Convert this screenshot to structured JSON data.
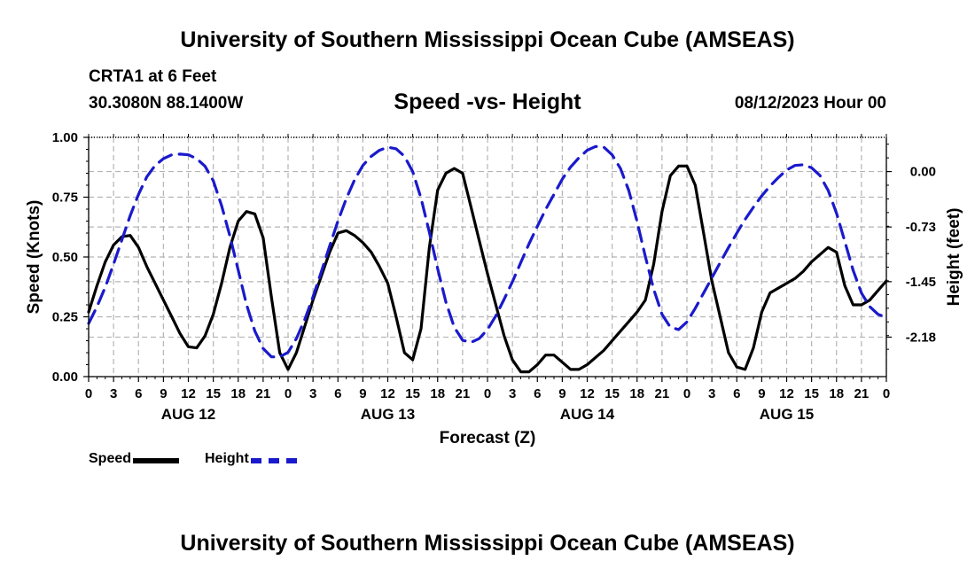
{
  "header": {
    "title": "University of Southern Mississippi Ocean Cube (AMSEAS)",
    "station": "CRTA1 at 6 Feet",
    "coords": "30.3080N  88.1400W",
    "datetime": "08/12/2023 Hour 00"
  },
  "footer": {
    "title": "University of Southern Mississippi Ocean Cube (AMSEAS)"
  },
  "legend": {
    "speed_label": "Speed",
    "height_label": "Height"
  },
  "colors": {
    "speed": "#000000",
    "height": "#1a1acc",
    "grid": "#b4b4b4"
  },
  "chart_data": {
    "type": "line",
    "title": "Speed -vs- Height",
    "xlabel": "Forecast (Z)",
    "ylabel": "Speed (Knots)",
    "y2label": "Height (feet)",
    "xlim": [
      0,
      96
    ],
    "ylim": [
      0,
      1.0
    ],
    "y2lim": [
      -2.7,
      0.45
    ],
    "x_ticks": [
      0,
      3,
      6,
      9,
      12,
      15,
      18,
      21,
      24,
      27,
      30,
      33,
      36,
      39,
      42,
      45,
      48,
      51,
      54,
      57,
      60,
      63,
      66,
      69,
      72,
      75,
      78,
      81,
      84,
      87,
      90,
      93,
      96
    ],
    "x_tick_labels": [
      "0",
      "3",
      "6",
      "9",
      "12",
      "15",
      "18",
      "21",
      "0",
      "3",
      "6",
      "9",
      "12",
      "15",
      "18",
      "21",
      "0",
      "3",
      "6",
      "9",
      "12",
      "15",
      "18",
      "21",
      "0",
      "3",
      "6",
      "9",
      "12",
      "15",
      "18",
      "21",
      "0"
    ],
    "day_labels": [
      {
        "x": 12,
        "label": "AUG 12"
      },
      {
        "x": 36,
        "label": "AUG 13"
      },
      {
        "x": 60,
        "label": "AUG 14"
      },
      {
        "x": 84,
        "label": "AUG 15"
      }
    ],
    "y_ticks": [
      0,
      0.25,
      0.5,
      0.75,
      1.0
    ],
    "y_tick_labels": [
      "0.00",
      "0.25",
      "0.50",
      "0.75",
      "1.00"
    ],
    "y2_ticks": [
      0.0,
      -0.73,
      -1.45,
      -2.18
    ],
    "y2_tick_labels": [
      "0.00",
      "-0.73",
      "-1.45",
      "-2.18"
    ],
    "series": [
      {
        "name": "Speed",
        "axis": "left",
        "style": "solid",
        "x": [
          0,
          1,
          2,
          3,
          4,
          5,
          6,
          7,
          8,
          9,
          10,
          11,
          12,
          13,
          14,
          15,
          16,
          17,
          18,
          19,
          20,
          21,
          22,
          23,
          24,
          25,
          26,
          27,
          28,
          29,
          30,
          31,
          32,
          33,
          34,
          35,
          36,
          37,
          38,
          39,
          40,
          41,
          42,
          43,
          44,
          45,
          46,
          47,
          48,
          49,
          50,
          51,
          52,
          53,
          54,
          55,
          56,
          57,
          58,
          59,
          60,
          61,
          62,
          63,
          64,
          65,
          66,
          67,
          68,
          69,
          70,
          71,
          72,
          73,
          74,
          75,
          76,
          77,
          78,
          79,
          80,
          81,
          82,
          83,
          84,
          85,
          86,
          87,
          88,
          89,
          90,
          91,
          92,
          93,
          94,
          95,
          96
        ],
        "values": [
          0.27,
          0.38,
          0.48,
          0.55,
          0.585,
          0.59,
          0.54,
          0.46,
          0.39,
          0.32,
          0.25,
          0.18,
          0.125,
          0.12,
          0.17,
          0.26,
          0.39,
          0.54,
          0.65,
          0.69,
          0.68,
          0.58,
          0.33,
          0.1,
          0.03,
          0.1,
          0.21,
          0.32,
          0.42,
          0.52,
          0.6,
          0.61,
          0.59,
          0.56,
          0.52,
          0.46,
          0.39,
          0.25,
          0.1,
          0.07,
          0.2,
          0.54,
          0.78,
          0.85,
          0.87,
          0.85,
          0.71,
          0.57,
          0.43,
          0.3,
          0.17,
          0.07,
          0.02,
          0.02,
          0.05,
          0.09,
          0.09,
          0.06,
          0.03,
          0.03,
          0.05,
          0.08,
          0.11,
          0.15,
          0.19,
          0.23,
          0.27,
          0.32,
          0.47,
          0.69,
          0.84,
          0.88,
          0.88,
          0.8,
          0.6,
          0.4,
          0.25,
          0.1,
          0.04,
          0.03,
          0.12,
          0.27,
          0.35,
          0.37,
          0.39,
          0.41,
          0.44,
          0.48,
          0.51,
          0.54,
          0.52,
          0.38,
          0.3,
          0.3,
          0.32,
          0.36,
          0.4
        ]
      },
      {
        "name": "Height",
        "axis": "right",
        "style": "dashed",
        "x": [
          0,
          1,
          2,
          3,
          4,
          5,
          6,
          7,
          8,
          9,
          10,
          11,
          12,
          13,
          14,
          15,
          16,
          17,
          18,
          19,
          20,
          21,
          22,
          23,
          24,
          25,
          26,
          27,
          28,
          29,
          30,
          31,
          32,
          33,
          34,
          35,
          36,
          37,
          38,
          39,
          40,
          41,
          42,
          43,
          44,
          45,
          46,
          47,
          48,
          49,
          50,
          51,
          52,
          53,
          54,
          55,
          56,
          57,
          58,
          59,
          60,
          61,
          62,
          63,
          64,
          65,
          66,
          67,
          68,
          69,
          70,
          71,
          72,
          73,
          74,
          75,
          76,
          77,
          78,
          79,
          80,
          81,
          82,
          83,
          84,
          85,
          86,
          87,
          88,
          89,
          90,
          91,
          92,
          93,
          94,
          95,
          96
        ],
        "values": [
          -2.0,
          -1.78,
          -1.52,
          -1.22,
          -0.9,
          -0.58,
          -0.3,
          -0.07,
          0.08,
          0.17,
          0.22,
          0.23,
          0.22,
          0.17,
          0.07,
          -0.12,
          -0.45,
          -0.85,
          -1.3,
          -1.75,
          -2.1,
          -2.33,
          -2.44,
          -2.44,
          -2.38,
          -2.2,
          -1.95,
          -1.65,
          -1.32,
          -0.98,
          -0.65,
          -0.36,
          -0.11,
          0.08,
          0.2,
          0.28,
          0.32,
          0.3,
          0.2,
          0.0,
          -0.35,
          -0.8,
          -1.28,
          -1.72,
          -2.05,
          -2.22,
          -2.25,
          -2.2,
          -2.08,
          -1.9,
          -1.68,
          -1.45,
          -1.2,
          -0.95,
          -0.72,
          -0.5,
          -0.3,
          -0.1,
          0.06,
          0.18,
          0.28,
          0.33,
          0.32,
          0.22,
          0.04,
          -0.25,
          -0.66,
          -1.12,
          -1.55,
          -1.88,
          -2.05,
          -2.08,
          -1.98,
          -1.8,
          -1.6,
          -1.4,
          -1.2,
          -1.0,
          -0.81,
          -0.63,
          -0.47,
          -0.32,
          -0.19,
          -0.08,
          0.02,
          0.08,
          0.09,
          0.05,
          -0.05,
          -0.25,
          -0.55,
          -0.92,
          -1.3,
          -1.6,
          -1.78,
          -1.88,
          -1.92
        ]
      }
    ]
  }
}
